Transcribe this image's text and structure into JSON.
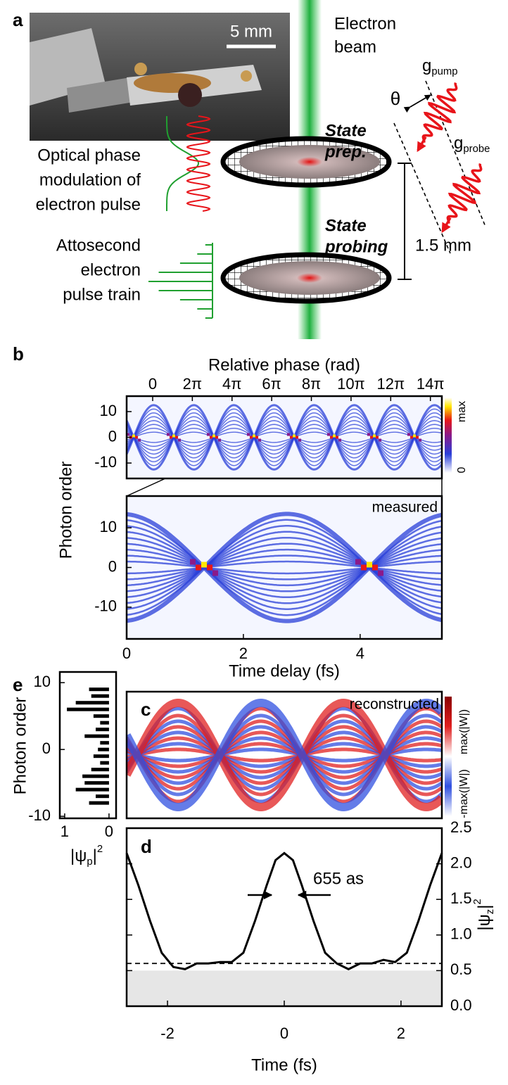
{
  "panel_a": {
    "label": "a",
    "scale_bar": "5 mm",
    "beam": [
      "Electron",
      "beam"
    ],
    "theta": "θ",
    "g_pump": [
      "g",
      "pump"
    ],
    "g_probe": [
      "g",
      "probe"
    ],
    "state_prep": [
      "State",
      "prep."
    ],
    "state_probing": [
      "State",
      "probing"
    ],
    "distance": "1.5 mm",
    "modulation": [
      "Optical phase",
      "modulation of",
      "electron pulse"
    ],
    "pulse_train": [
      "Attosecond",
      "electron",
      "pulse train"
    ]
  },
  "panel_b": {
    "label": "b",
    "top_axis_title": "Relative phase (rad)",
    "phase_lim": [
      -4.12,
      45.8
    ],
    "phase_ticks": [
      0,
      {
        "value": 6.283,
        "label": "2π"
      },
      {
        "value": 12.566,
        "label": "4π"
      },
      {
        "value": 18.85,
        "label": "6π"
      },
      {
        "value": 25.133,
        "label": "8π"
      },
      {
        "value": 31.416,
        "label": "10π"
      },
      {
        "value": 37.699,
        "label": "12π"
      },
      {
        "value": 43.982,
        "label": "14π"
      }
    ],
    "y_title": "Photon order",
    "overview_ylim": [
      -16,
      16
    ],
    "overview_yticks": [
      10,
      0,
      -10
    ],
    "colorbar_labels": [
      "max",
      "0"
    ],
    "zoom_annotation": "measured",
    "zoom_ylim": [
      -18,
      18
    ],
    "zoom_yticks": [
      10,
      0,
      -10
    ],
    "xlim": [
      0,
      5.4
    ],
    "xticks": [
      0,
      2,
      4
    ],
    "x_title": "Time delay (fs)"
  },
  "panel_c": {
    "label": "c",
    "annotation": "reconstructed",
    "colorbar_labels": [
      "max(|W|)",
      "-max(|W|)"
    ]
  },
  "chart_data": [
    {
      "type": "bar",
      "label": "e",
      "ylabel": "Photon order",
      "xlabel": [
        "|ψ",
        "p",
        "|",
        "2"
      ],
      "orders": [
        9,
        8,
        7,
        6,
        5,
        4,
        3,
        2,
        1,
        0,
        -1,
        -2,
        -3,
        -4,
        -5,
        -6,
        -7,
        -8
      ],
      "values": [
        0.45,
        0.4,
        0.75,
        0.95,
        0.35,
        0.2,
        0.3,
        0.55,
        0.2,
        0.25,
        0.35,
        0.2,
        0.4,
        0.6,
        0.55,
        0.75,
        0.3,
        0.45
      ],
      "color": "#000000",
      "xlim": [
        1.11,
        -0.16
      ],
      "xticks": [
        1,
        0
      ],
      "ylim": [
        -10.3,
        11.6
      ],
      "yticks": [
        10,
        0,
        -10
      ]
    },
    {
      "type": "line",
      "label": "d",
      "xlabel": "Time (fs)",
      "y2label": [
        "|ψ",
        "z",
        "|",
        "2"
      ],
      "annotation": "655 as",
      "x": [
        -2.7,
        -2.5,
        -2.3,
        -2.1,
        -1.9,
        -1.7,
        -1.5,
        -1.3,
        -1.1,
        -0.9,
        -0.7,
        -0.5,
        -0.3,
        -0.15,
        0,
        0.15,
        0.3,
        0.5,
        0.7,
        0.9,
        1.1,
        1.3,
        1.5,
        1.7,
        1.9,
        2.1,
        2.3,
        2.5,
        2.7
      ],
      "series": [
        {
          "color": "#000000",
          "axis": "y2",
          "values": [
            2.15,
            1.7,
            1.2,
            0.75,
            0.55,
            0.52,
            0.6,
            0.6,
            0.62,
            0.62,
            0.75,
            1.2,
            1.7,
            2.05,
            2.15,
            2.05,
            1.7,
            1.2,
            0.75,
            0.6,
            0.52,
            0.6,
            0.6,
            0.65,
            0.62,
            0.75,
            1.2,
            1.7,
            2.15
          ]
        }
      ],
      "xlim": [
        -2.7,
        2.7
      ],
      "xticks": [
        -2,
        0,
        2
      ],
      "y2lim": [
        0,
        2.5
      ],
      "y2ticks": [
        {
          "value": 0,
          "label": "0.0"
        },
        0.5,
        {
          "value": 1,
          "label": "1.0"
        },
        1.5,
        {
          "value": 2,
          "label": "2.0"
        },
        2.5
      ],
      "threshold": 0.6,
      "shaded_max": 0.5
    }
  ]
}
